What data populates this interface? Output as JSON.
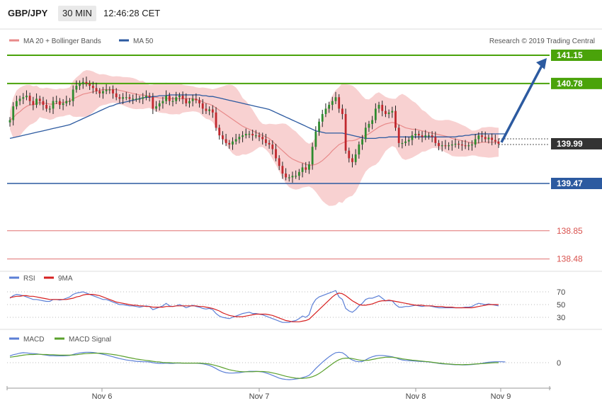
{
  "header": {
    "symbol": "GBP/JPY",
    "timeframe": "30 MIN",
    "time": "12:46:28 CET"
  },
  "legend": {
    "ma20_bb": "MA 20 + Bollinger Bands",
    "ma50": "MA 50",
    "credit": "Research © 2019 Trading Central"
  },
  "colors": {
    "up": "#2e8b2e",
    "down": "#c0272d",
    "band": "#f7c9c9",
    "ma20": "#e88a8a",
    "ma50": "#2c5aa0",
    "resistance": "#4aa30a",
    "support": "#2c5aa0",
    "target": "#e07070",
    "arrow": "#2c5aa0",
    "current": "#333333"
  },
  "chart_data": [
    {
      "type": "candlestick",
      "ylim": [
        138.3,
        141.3
      ],
      "x_ticks": [
        "Nov 6",
        "Nov 7",
        "Nov 8",
        "Nov 9"
      ],
      "price_levels": {
        "resistance": [
          141.15,
          140.78
        ],
        "support": [
          139.47
        ],
        "targets": [
          138.85,
          138.48
        ],
        "current": 139.99
      },
      "projection": {
        "from": 139.99,
        "to": 141.15
      },
      "close": [
        140.3,
        140.48,
        140.55,
        140.58,
        140.6,
        140.62,
        140.55,
        140.5,
        140.58,
        140.55,
        140.5,
        140.45,
        140.45,
        140.55,
        140.55,
        140.5,
        140.52,
        140.55,
        140.55,
        140.7,
        140.75,
        140.78,
        140.8,
        140.78,
        140.75,
        140.72,
        140.68,
        140.65,
        140.68,
        140.7,
        140.7,
        140.65,
        140.6,
        140.58,
        140.6,
        140.6,
        140.58,
        140.58,
        140.58,
        140.58,
        140.6,
        140.62,
        140.6,
        140.45,
        140.48,
        140.52,
        140.55,
        140.62,
        140.55,
        140.55,
        140.6,
        140.62,
        140.58,
        140.52,
        140.55,
        140.58,
        140.56,
        140.52,
        140.45,
        140.42,
        140.44,
        140.4,
        140.2,
        140.1,
        140.05,
        140.0,
        139.98,
        140.02,
        140.05,
        140.08,
        140.1,
        140.12,
        140.12,
        140.1,
        140.1,
        140.08,
        140.05,
        140.0,
        139.98,
        139.92,
        139.8,
        139.7,
        139.6,
        139.55,
        139.55,
        139.57,
        139.57,
        139.62,
        139.68,
        139.65,
        139.72,
        139.95,
        140.15,
        140.28,
        140.38,
        140.45,
        140.5,
        140.55,
        140.6,
        140.45,
        140.38,
        139.9,
        139.8,
        139.75,
        139.85,
        139.98,
        140.05,
        140.2,
        140.25,
        140.3,
        140.45,
        140.5,
        140.42,
        140.38,
        140.4,
        140.42,
        140.2,
        140.0,
        140.0,
        140.02,
        140.04,
        140.1,
        140.12,
        140.1,
        140.08,
        140.1,
        140.1,
        140.08,
        140.0,
        139.96,
        139.97,
        139.96,
        139.97,
        139.98,
        139.99,
        139.98,
        139.97,
        139.96,
        139.97,
        139.98,
        140.05,
        140.1,
        140.08,
        140.05,
        140.07,
        140.04,
        140.02,
        139.99
      ],
      "ma20": [
        140.3,
        140.33,
        140.38,
        140.41,
        140.45,
        140.48,
        140.5,
        140.5,
        140.52,
        140.53,
        140.52,
        140.52,
        140.51,
        140.51,
        140.52,
        140.53,
        140.53,
        140.54,
        140.55,
        140.58,
        140.6,
        140.62,
        140.64,
        140.65,
        140.66,
        140.67,
        140.68,
        140.69,
        140.7,
        140.7,
        140.7,
        140.7,
        140.7,
        140.69,
        140.68,
        140.67,
        140.66,
        140.65,
        140.64,
        140.63,
        140.63,
        140.62,
        140.61,
        140.6,
        140.6,
        140.59,
        140.59,
        140.59,
        140.58,
        140.58,
        140.58,
        140.58,
        140.58,
        140.58,
        140.58,
        140.58,
        140.57,
        140.56,
        140.54,
        140.52,
        140.51,
        140.49,
        140.46,
        140.43,
        140.4,
        140.37,
        140.34,
        140.31,
        140.28,
        140.25,
        140.22,
        140.2,
        140.18,
        140.16,
        140.14,
        140.12,
        140.1,
        140.08,
        140.06,
        140.02,
        139.98,
        139.94,
        139.9,
        139.86,
        139.82,
        139.79,
        139.77,
        139.75,
        139.74,
        139.72,
        139.71,
        139.71,
        139.72,
        139.74,
        139.77,
        139.81,
        139.85,
        139.9,
        139.94,
        139.98,
        140.0,
        140.02,
        140.03,
        140.03,
        140.04,
        140.06,
        140.08,
        140.1,
        140.12,
        140.15,
        140.18,
        140.21,
        140.23,
        140.25,
        140.26,
        140.27,
        140.26,
        140.24,
        140.22,
        140.2,
        140.19,
        140.18,
        140.18,
        140.17,
        140.16,
        140.15,
        140.14,
        140.13,
        140.12,
        140.11,
        140.1,
        140.09,
        140.08,
        140.06,
        140.05,
        140.04,
        140.03,
        140.02,
        140.01,
        140.0,
        140.0,
        140.0,
        140.01,
        140.01,
        140.01,
        140.01,
        140.01,
        140.01
      ],
      "ma50": [
        140.06,
        140.07,
        140.08,
        140.09,
        140.1,
        140.11,
        140.12,
        140.13,
        140.14,
        140.15,
        140.16,
        140.17,
        140.18,
        140.19,
        140.2,
        140.21,
        140.22,
        140.23,
        140.24,
        140.26,
        140.28,
        140.3,
        140.32,
        140.34,
        140.36,
        140.38,
        140.4,
        140.42,
        140.44,
        140.46,
        140.48,
        140.49,
        140.51,
        140.52,
        140.53,
        140.54,
        140.55,
        140.56,
        140.57,
        140.58,
        140.59,
        140.6,
        140.6,
        140.61,
        140.61,
        140.62,
        140.62,
        140.62,
        140.63,
        140.63,
        140.63,
        140.63,
        140.63,
        140.63,
        140.63,
        140.63,
        140.63,
        140.63,
        140.62,
        140.62,
        140.61,
        140.61,
        140.6,
        140.59,
        140.58,
        140.57,
        140.56,
        140.55,
        140.54,
        140.53,
        140.52,
        140.51,
        140.5,
        140.49,
        140.48,
        140.47,
        140.46,
        140.45,
        140.44,
        140.42,
        140.4,
        140.38,
        140.36,
        140.34,
        140.32,
        140.3,
        140.28,
        140.26,
        140.24,
        140.22,
        140.2,
        140.18,
        140.16,
        140.15,
        140.14,
        140.13,
        140.13,
        140.13,
        140.13,
        140.13,
        140.13,
        140.12,
        140.11,
        140.1,
        140.09,
        140.08,
        140.07,
        140.06,
        140.06,
        140.06,
        140.06,
        140.07,
        140.07,
        140.07,
        140.08,
        140.08,
        140.08,
        140.08,
        140.08,
        140.08,
        140.08,
        140.08,
        140.08,
        140.08,
        140.08,
        140.08,
        140.08,
        140.08,
        140.08,
        140.08,
        140.08,
        140.08,
        140.08,
        140.08,
        140.08,
        140.09,
        140.09,
        140.1,
        140.1,
        140.11,
        140.11,
        140.12,
        140.12,
        140.12,
        140.12,
        140.12,
        140.12,
        140.12,
        140.12,
        140.12
      ]
    },
    {
      "type": "line",
      "ylim": [
        15,
        85
      ],
      "y_ticks": [
        70,
        50,
        30
      ],
      "series": [
        {
          "name": "RSI",
          "values": [
            60,
            64,
            66,
            65,
            64,
            62,
            60,
            58,
            58,
            57,
            56,
            55,
            55,
            58,
            58,
            57,
            58,
            60,
            62,
            66,
            68,
            69,
            70,
            68,
            66,
            64,
            62,
            60,
            58,
            58,
            56,
            54,
            52,
            50,
            50,
            49,
            48,
            48,
            47,
            46,
            47,
            48,
            47,
            42,
            44,
            46,
            48,
            52,
            48,
            47,
            48,
            50,
            48,
            45,
            47,
            49,
            47,
            46,
            44,
            43,
            44,
            42,
            36,
            32,
            30,
            29,
            28,
            30,
            32,
            34,
            36,
            37,
            38,
            36,
            36,
            35,
            34,
            32,
            30,
            28,
            26,
            24,
            22,
            22,
            22,
            24,
            25,
            28,
            32,
            30,
            34,
            50,
            58,
            62,
            64,
            66,
            68,
            70,
            72,
            62,
            58,
            44,
            40,
            38,
            42,
            48,
            52,
            58,
            60,
            60,
            62,
            64,
            60,
            56,
            56,
            56,
            50,
            46,
            46,
            47,
            47,
            48,
            49,
            48,
            47,
            48,
            48,
            47,
            46,
            45,
            45,
            45,
            45,
            45,
            45,
            45,
            45,
            46,
            46,
            47,
            50,
            52,
            51,
            50,
            51,
            50,
            49,
            48
          ]
        },
        {
          "name": "9MA",
          "values": [
            61,
            62,
            63,
            63,
            64,
            64,
            63,
            63,
            62,
            61,
            60,
            59,
            58,
            58,
            58,
            58,
            58,
            58,
            59,
            60,
            62,
            63,
            65,
            66,
            66,
            66,
            65,
            64,
            62,
            60,
            58,
            56,
            54,
            53,
            52,
            51,
            50,
            49,
            49,
            48,
            48,
            47,
            47,
            46,
            46,
            46,
            46,
            47,
            47,
            47,
            48,
            48,
            48,
            48,
            48,
            48,
            48,
            47,
            47,
            46,
            45,
            44,
            42,
            40,
            37,
            35,
            33,
            32,
            31,
            31,
            31,
            32,
            33,
            34,
            35,
            35,
            35,
            35,
            34,
            33,
            31,
            29,
            27,
            25,
            24,
            23,
            23,
            23,
            24,
            25,
            27,
            32,
            37,
            42,
            47,
            52,
            57,
            62,
            66,
            68,
            67,
            64,
            60,
            56,
            53,
            50,
            49,
            49,
            50,
            51,
            53,
            55,
            56,
            56,
            57,
            56,
            55,
            54,
            53,
            52,
            51,
            50,
            49,
            49,
            49,
            48,
            48,
            48,
            47,
            47,
            47,
            46,
            46,
            46,
            45,
            45,
            45,
            45,
            45,
            45,
            46,
            47,
            48,
            49,
            50,
            50,
            50,
            50
          ]
        }
      ]
    },
    {
      "type": "line",
      "ylim": [
        -1.0,
        0.75
      ],
      "y_ticks": [
        0
      ],
      "series": [
        {
          "name": "MACD",
          "values": [
            0.3,
            0.35,
            0.38,
            0.42,
            0.44,
            0.43,
            0.41,
            0.4,
            0.39,
            0.37,
            0.35,
            0.33,
            0.31,
            0.31,
            0.3,
            0.3,
            0.3,
            0.31,
            0.32,
            0.36,
            0.4,
            0.43,
            0.45,
            0.46,
            0.46,
            0.45,
            0.43,
            0.4,
            0.37,
            0.34,
            0.3,
            0.26,
            0.22,
            0.18,
            0.15,
            0.12,
            0.1,
            0.08,
            0.06,
            0.05,
            0.04,
            0.04,
            0.03,
            0.0,
            -0.02,
            -0.03,
            -0.03,
            -0.02,
            -0.03,
            -0.03,
            -0.02,
            -0.02,
            -0.02,
            -0.02,
            -0.02,
            -0.02,
            -0.02,
            -0.03,
            -0.05,
            -0.08,
            -0.12,
            -0.18,
            -0.26,
            -0.34,
            -0.4,
            -0.44,
            -0.46,
            -0.46,
            -0.45,
            -0.44,
            -0.42,
            -0.4,
            -0.38,
            -0.38,
            -0.38,
            -0.39,
            -0.41,
            -0.45,
            -0.5,
            -0.56,
            -0.62,
            -0.68,
            -0.72,
            -0.74,
            -0.75,
            -0.74,
            -0.72,
            -0.7,
            -0.66,
            -0.62,
            -0.56,
            -0.42,
            -0.26,
            -0.12,
            0.02,
            0.14,
            0.26,
            0.36,
            0.44,
            0.46,
            0.44,
            0.34,
            0.2,
            0.12,
            0.06,
            0.04,
            0.05,
            0.12,
            0.2,
            0.26,
            0.3,
            0.32,
            0.32,
            0.3,
            0.28,
            0.26,
            0.22,
            0.16,
            0.12,
            0.1,
            0.09,
            0.08,
            0.07,
            0.06,
            0.05,
            0.04,
            0.03,
            0.01,
            -0.01,
            -0.03,
            -0.05,
            -0.06,
            -0.07,
            -0.08,
            -0.09,
            -0.09,
            -0.1,
            -0.1,
            -0.09,
            -0.08,
            -0.07,
            -0.05,
            -0.03,
            0.0,
            0.02,
            0.03,
            0.04,
            0.04,
            0.04,
            0.03
          ]
        },
        {
          "name": "MACD Signal",
          "values": [
            0.24,
            0.26,
            0.28,
            0.31,
            0.33,
            0.35,
            0.36,
            0.36,
            0.37,
            0.37,
            0.36,
            0.36,
            0.35,
            0.35,
            0.34,
            0.33,
            0.33,
            0.33,
            0.33,
            0.34,
            0.35,
            0.37,
            0.39,
            0.4,
            0.41,
            0.42,
            0.42,
            0.42,
            0.41,
            0.4,
            0.38,
            0.36,
            0.34,
            0.31,
            0.28,
            0.25,
            0.22,
            0.19,
            0.16,
            0.14,
            0.12,
            0.1,
            0.08,
            0.06,
            0.04,
            0.03,
            0.01,
            0.0,
            0.0,
            -0.01,
            -0.01,
            -0.01,
            -0.02,
            -0.02,
            -0.02,
            -0.02,
            -0.02,
            -0.02,
            -0.03,
            -0.04,
            -0.06,
            -0.09,
            -0.13,
            -0.17,
            -0.22,
            -0.27,
            -0.31,
            -0.34,
            -0.37,
            -0.39,
            -0.4,
            -0.4,
            -0.4,
            -0.4,
            -0.39,
            -0.39,
            -0.39,
            -0.4,
            -0.42,
            -0.45,
            -0.48,
            -0.52,
            -0.56,
            -0.6,
            -0.63,
            -0.66,
            -0.68,
            -0.69,
            -0.69,
            -0.68,
            -0.66,
            -0.62,
            -0.56,
            -0.48,
            -0.38,
            -0.27,
            -0.16,
            -0.05,
            0.05,
            0.13,
            0.18,
            0.2,
            0.2,
            0.18,
            0.15,
            0.12,
            0.1,
            0.1,
            0.11,
            0.14,
            0.17,
            0.2,
            0.22,
            0.24,
            0.24,
            0.24,
            0.22,
            0.2,
            0.17,
            0.15,
            0.13,
            0.11,
            0.1,
            0.08,
            0.07,
            0.05,
            0.04,
            0.02,
            0.0,
            -0.02,
            -0.03,
            -0.05,
            -0.06,
            -0.07,
            -0.08,
            -0.08,
            -0.09,
            -0.08,
            -0.08,
            -0.07,
            -0.06,
            -0.05,
            -0.04,
            -0.03,
            -0.02,
            -0.01,
            0.0,
            0.0
          ]
        }
      ]
    }
  ]
}
